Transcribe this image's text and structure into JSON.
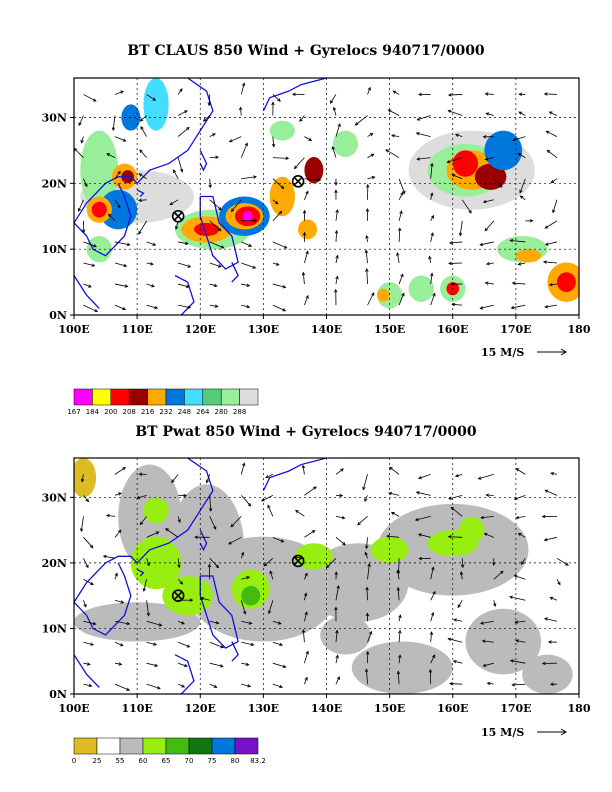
{
  "chart_data": [
    {
      "type": "heatmap",
      "title": "BT CLAUS 850 Wind + Gyrelocs 940717/0000",
      "x_ticks": [
        "100E",
        "110E",
        "120E",
        "130E",
        "140E",
        "150E",
        "160E",
        "170E",
        "180"
      ],
      "y_ticks": [
        "0N",
        "10N",
        "20N",
        "30N"
      ],
      "xlim": [
        100,
        180
      ],
      "ylim": [
        0,
        36
      ],
      "grid": true,
      "vector_reference": "15 M/S",
      "colorbar": {
        "labels": [
          "167",
          "184",
          "200",
          "208",
          "216",
          "232",
          "248",
          "264",
          "280",
          "288"
        ],
        "colors": [
          "#ff00ff",
          "#ffff00",
          "#ff0000",
          "#990000",
          "#ffaa00",
          "#0077dd",
          "#44ddff",
          "#55cc77",
          "#99ee99",
          "#dddddd"
        ]
      },
      "gyre_locations": [
        {
          "lon": 116.5,
          "lat": 15.0
        },
        {
          "lon": 135.5,
          "lat": 20.3
        }
      ]
    },
    {
      "type": "heatmap",
      "title": "BT Pwat 850 Wind + Gyrelocs 940717/0000",
      "x_ticks": [
        "100E",
        "110E",
        "120E",
        "130E",
        "140E",
        "150E",
        "160E",
        "170E",
        "180"
      ],
      "y_ticks": [
        "0N",
        "10N",
        "20N",
        "30N"
      ],
      "xlim": [
        100,
        180
      ],
      "ylim": [
        0,
        36
      ],
      "grid": true,
      "vector_reference": "15 M/S",
      "colorbar": {
        "labels": [
          "0",
          "25",
          "55",
          "60",
          "65",
          "70",
          "75",
          "80",
          "83.2"
        ],
        "colors": [
          "#ddbb22",
          "#ffffff",
          "#bbbbbb",
          "#99ee11",
          "#44bb11",
          "#117711",
          "#0077dd",
          "#7711cc"
        ]
      },
      "gyre_locations": [
        {
          "lon": 116.5,
          "lat": 15.0
        },
        {
          "lon": 135.5,
          "lat": 20.3
        }
      ]
    }
  ],
  "style": {
    "coast_color": "#1111dd",
    "grid_color": "#000000",
    "field_low": "#bbbbbb",
    "field_mid": "#99ee11"
  }
}
